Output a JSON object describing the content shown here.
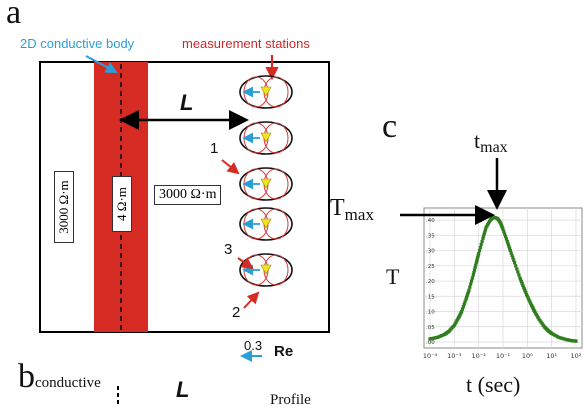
{
  "panel_a": {
    "letter": "a",
    "body_label": "2D conductive body",
    "stations_label": "measurement stations",
    "distance_label": "L",
    "left_resistivity": "3000 Ω·m",
    "body_resistivity": "4 Ω·m",
    "right_resistivity": "3000 Ω·m",
    "callouts": [
      "1",
      "3",
      "2"
    ],
    "scale_value": "0.3",
    "scale_label": "Re",
    "colors": {
      "body": "#d62b22",
      "body_arrow": "#2a9fd6",
      "stations_text": "#cc2a2a",
      "station_marker": "#f2e41c",
      "ellipse": "#d83a3a"
    }
  },
  "panel_b": {
    "letter": "b",
    "subscript": "conductive",
    "distance_label": "L",
    "profile_label": "Profile"
  },
  "panel_c": {
    "letter": "c",
    "tmax_label": "t",
    "tmax_sub": "max",
    "Tmax_label": "T",
    "Tmax_sub": "max",
    "ylabel": "T",
    "xlabel": "t (sec)"
  },
  "chart_data": {
    "type": "scatter",
    "xscale": "log",
    "xlim": [
      0.0001,
      100
    ],
    "ylim": [
      0,
      0.42
    ],
    "x_tick_labels": [
      "10⁻⁴",
      "10⁻³",
      "10⁻²",
      "10⁻¹",
      "10⁰",
      "10¹",
      "10²"
    ],
    "y_tick_labels": [
      ".00",
      ".05",
      ".10",
      ".15",
      ".20",
      ".25",
      ".30",
      ".35",
      ".40"
    ],
    "y_ticks": [
      0,
      0.05,
      0.1,
      0.15,
      0.2,
      0.25,
      0.3,
      0.35,
      0.4
    ],
    "xlabel": "t (sec)",
    "ylabel": "T",
    "peak": {
      "t": 0.04,
      "T": 0.41
    },
    "color": "#2e7d1e",
    "grid": true,
    "points": [
      [
        0.0001,
        0.01
      ],
      [
        0.0002,
        0.015
      ],
      [
        0.0004,
        0.025
      ],
      [
        0.0006,
        0.035
      ],
      [
        0.001,
        0.055
      ],
      [
        0.0015,
        0.08
      ],
      [
        0.002,
        0.1
      ],
      [
        0.003,
        0.14
      ],
      [
        0.004,
        0.17
      ],
      [
        0.006,
        0.22
      ],
      [
        0.008,
        0.26
      ],
      [
        0.01,
        0.29
      ],
      [
        0.015,
        0.34
      ],
      [
        0.02,
        0.375
      ],
      [
        0.03,
        0.4
      ],
      [
        0.04,
        0.41
      ],
      [
        0.06,
        0.405
      ],
      [
        0.08,
        0.39
      ],
      [
        0.1,
        0.37
      ],
      [
        0.15,
        0.33
      ],
      [
        0.2,
        0.3
      ],
      [
        0.3,
        0.26
      ],
      [
        0.5,
        0.21
      ],
      [
        0.7,
        0.18
      ],
      [
        1,
        0.15
      ],
      [
        1.5,
        0.12
      ],
      [
        2,
        0.1
      ],
      [
        3,
        0.075
      ],
      [
        5,
        0.05
      ],
      [
        7,
        0.038
      ],
      [
        10,
        0.028
      ],
      [
        20,
        0.015
      ],
      [
        40,
        0.008
      ],
      [
        70,
        0.004
      ],
      [
        100,
        0.003
      ]
    ]
  }
}
